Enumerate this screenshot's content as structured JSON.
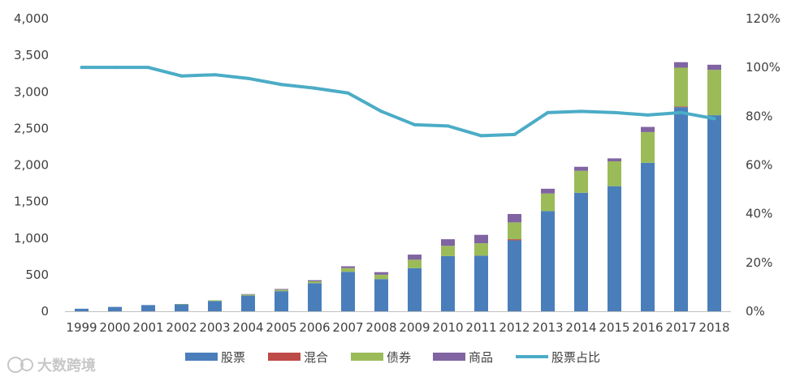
{
  "chart_data": {
    "type": "bar",
    "stacked": true,
    "categories": [
      "1999",
      "2000",
      "2001",
      "2002",
      "2003",
      "2004",
      "2005",
      "2006",
      "2007",
      "2008",
      "2009",
      "2010",
      "2011",
      "2012",
      "2013",
      "2014",
      "2015",
      "2016",
      "2017",
      "2018"
    ],
    "series": [
      {
        "name": "股票",
        "kind": "bar",
        "axis": "left",
        "color": "#4A7EBB",
        "values": [
          35,
          60,
          85,
          95,
          140,
          215,
          275,
          385,
          540,
          440,
          590,
          755,
          760,
          970,
          1370,
          1620,
          1710,
          2030,
          2790,
          2680
        ]
      },
      {
        "name": "混合",
        "kind": "bar",
        "axis": "left",
        "color": "#BE4B48",
        "values": [
          0,
          0,
          0,
          0,
          0,
          0,
          0,
          0,
          0,
          0,
          0,
          0,
          0,
          15,
          0,
          0,
          0,
          0,
          10,
          0
        ]
      },
      {
        "name": "债券",
        "kind": "bar",
        "axis": "left",
        "color": "#9BBB59",
        "values": [
          0,
          0,
          0,
          5,
          10,
          15,
          20,
          25,
          50,
          60,
          115,
          140,
          170,
          230,
          240,
          300,
          340,
          420,
          530,
          620
        ]
      },
      {
        "name": "商品",
        "kind": "bar",
        "axis": "left",
        "color": "#8064A2",
        "values": [
          0,
          0,
          0,
          0,
          0,
          5,
          10,
          15,
          25,
          35,
          70,
          90,
          115,
          115,
          65,
          55,
          40,
          70,
          75,
          70
        ]
      },
      {
        "name": "股票占比",
        "kind": "line",
        "axis": "right",
        "color": "#4BACC6",
        "values": [
          100,
          100,
          100,
          96.5,
          97,
          95.5,
          93,
          91.5,
          89.5,
          82,
          76.5,
          76,
          72,
          72.5,
          81.5,
          82,
          81.5,
          80.5,
          81.5,
          79
        ]
      }
    ],
    "y_left": {
      "min": 0,
      "max": 4000,
      "ticks": [
        "0",
        "500",
        "1,000",
        "1,500",
        "2,000",
        "2,500",
        "3,000",
        "3,500",
        "4,000"
      ]
    },
    "y_right": {
      "min": 0,
      "max": 120,
      "ticks": [
        "0%",
        "20%",
        "40%",
        "60%",
        "80%",
        "100%",
        "120%"
      ]
    },
    "legend_position": "bottom",
    "grid": false
  },
  "watermark": {
    "text": "大数跨境"
  }
}
